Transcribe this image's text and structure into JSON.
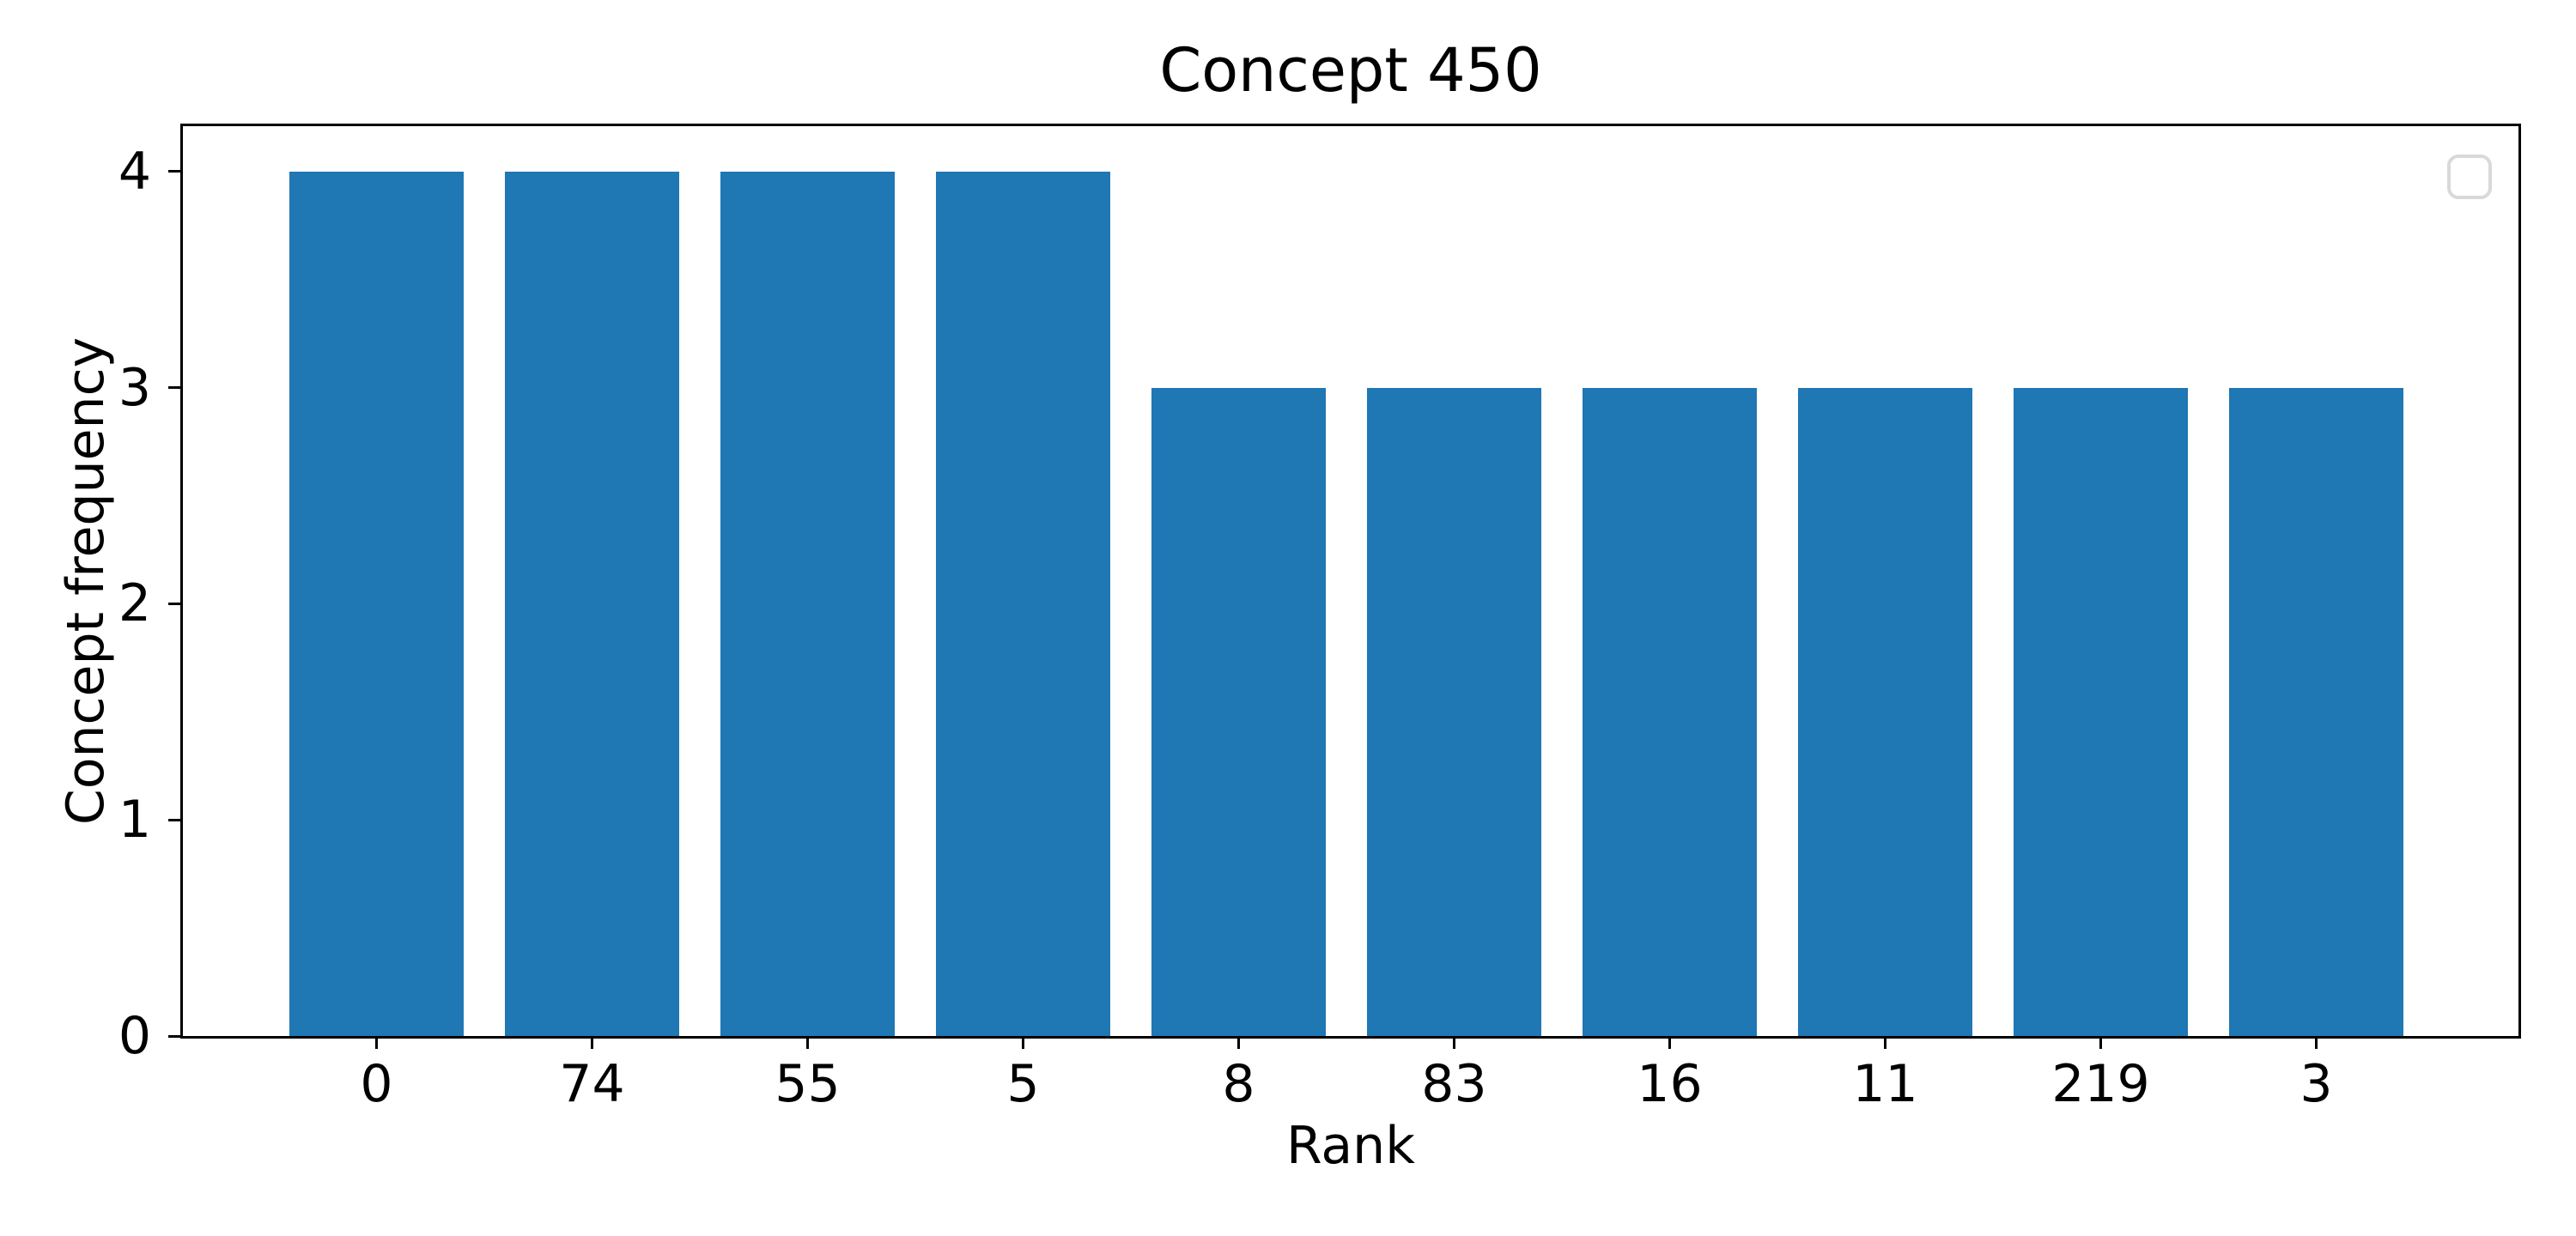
{
  "figure": {
    "background": "#ffffff",
    "frame_color": "#000000",
    "tick_color": "#000000",
    "text_color": "#000000"
  },
  "legend": {
    "visible": true,
    "entries": [],
    "border_color": "#d9d9d9"
  },
  "chart_data": {
    "type": "bar",
    "title": "Concept 450",
    "xlabel": "Rank",
    "ylabel": "Concept frequency",
    "categories": [
      "0",
      "74",
      "55",
      "5",
      "8",
      "83",
      "16",
      "11",
      "219",
      "3"
    ],
    "values": [
      4,
      4,
      4,
      4,
      3,
      3,
      3,
      3,
      3,
      3
    ],
    "bar_color": "#1f77b4",
    "yticks": [
      0,
      1,
      2,
      3,
      4
    ],
    "ylim": [
      0,
      4.21
    ],
    "grid": false,
    "legend_position": "upper right"
  }
}
